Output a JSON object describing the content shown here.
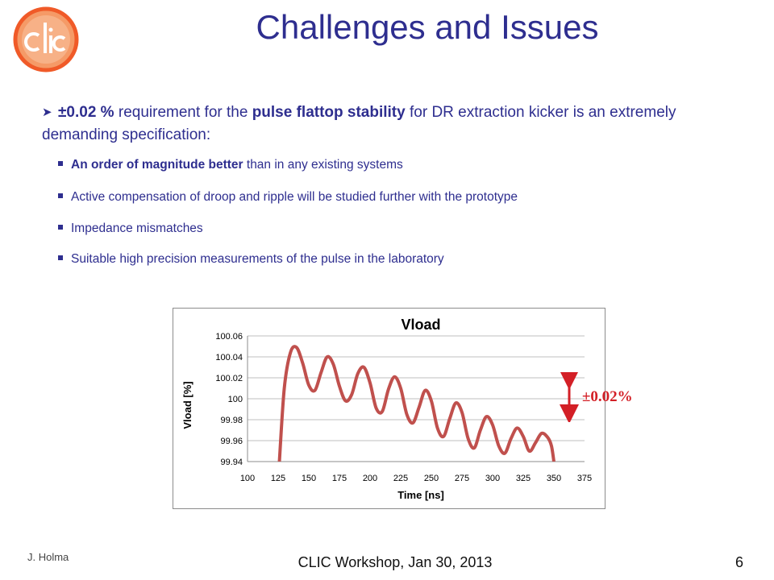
{
  "logo": {
    "text": "CLIC",
    "colors": {
      "ring": "#f05a28",
      "ring_fill": "#f59a67",
      "letters": "#ffffff"
    }
  },
  "title": "Challenges and Issues",
  "main_bullet": {
    "p1": "±0.02 %",
    "p2": " requirement for the ",
    "p3": "pulse flattop stability",
    "p4": " for DR extraction kicker is an extremely demanding specification:"
  },
  "sub_bullets": [
    {
      "bold": "An order of magnitude better",
      "rest": " than in any existing systems"
    },
    {
      "bold": "",
      "rest": "Active compensation of droop and ripple will be studied further with the prototype"
    },
    {
      "bold": "",
      "rest": "Impedance mismatches"
    },
    {
      "bold": "",
      "rest": "Suitable high precision measurements of the pulse in the laboratory"
    }
  ],
  "annotation": {
    "label": "±0.02%",
    "color": "#d31f26"
  },
  "chart_data": {
    "type": "line",
    "title": "Vload",
    "xlabel": "Time [ns]",
    "ylabel": "Vload [%]",
    "xlim": [
      100,
      375
    ],
    "ylim": [
      99.94,
      100.06
    ],
    "xticks": [
      "100",
      "125",
      "150",
      "175",
      "200",
      "225",
      "250",
      "275",
      "300",
      "325",
      "350",
      "375"
    ],
    "yticks": [
      "100.06",
      "100.04",
      "100.02",
      "100",
      "99.98",
      "99.96",
      "99.94"
    ],
    "grid": true,
    "legend": "none",
    "series": [
      {
        "color": "#c0504d",
        "x": [
          126,
          130,
          135,
          140,
          145,
          150,
          155,
          160,
          165,
          170,
          175,
          180,
          185,
          190,
          195,
          200,
          205,
          210,
          215,
          220,
          225,
          230,
          235,
          240,
          245,
          250,
          255,
          260,
          265,
          270,
          275,
          280,
          285,
          290,
          295,
          300,
          305,
          310,
          315,
          320,
          325,
          330,
          335,
          340,
          345,
          348,
          350
        ],
        "y": [
          99.94,
          100.01,
          100.044,
          100.049,
          100.034,
          100.013,
          100.008,
          100.025,
          100.04,
          100.033,
          100.012,
          99.998,
          100.004,
          100.024,
          100.03,
          100.015,
          99.991,
          99.988,
          100.009,
          100.021,
          100.01,
          99.985,
          99.977,
          99.992,
          100.008,
          99.998,
          99.972,
          99.964,
          99.981,
          99.996,
          99.987,
          99.962,
          99.953,
          99.97,
          99.983,
          99.975,
          99.955,
          99.948,
          99.962,
          99.972,
          99.964,
          99.95,
          99.958,
          99.967,
          99.963,
          99.955,
          99.94
        ]
      }
    ]
  },
  "footer": {
    "author": "J. Holma",
    "center": "CLIC Workshop, Jan 30, 2013",
    "page": "6"
  }
}
